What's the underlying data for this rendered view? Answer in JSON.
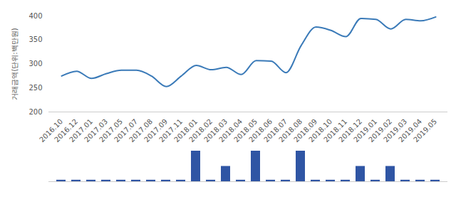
{
  "chart_data": [
    {
      "type": "line",
      "y_label": "거래금액(단위:백만원)",
      "categories": [
        "2016.10",
        "2016.12",
        "2017.01",
        "2017.03",
        "2017.05",
        "2017.07",
        "2017.08",
        "2017.09",
        "2017.11",
        "2018.01",
        "2018.02",
        "2018.03",
        "2018.04",
        "2018.05",
        "2018.06",
        "2018.07",
        "2018.08",
        "2018.09",
        "2018.10",
        "2018.11",
        "2018.12",
        "2019.01",
        "2019.02",
        "2019.03",
        "2019.04",
        "2019.05"
      ],
      "values": [
        275,
        285,
        270,
        280,
        287,
        287,
        275,
        253,
        275,
        297,
        288,
        293,
        278,
        307,
        306,
        282,
        338,
        377,
        370,
        357,
        395,
        393,
        373,
        393,
        390,
        398
      ],
      "color": "#3a7ab8",
      "ylim": [
        200,
        400
      ],
      "yticks": [
        200,
        250,
        300,
        350,
        400
      ],
      "grid": false
    },
    {
      "type": "bar",
      "categories": [
        "2016.10",
        "2016.12",
        "2017.01",
        "2017.03",
        "2017.05",
        "2017.07",
        "2017.08",
        "2017.09",
        "2017.11",
        "2018.01",
        "2018.02",
        "2018.03",
        "2018.04",
        "2018.05",
        "2018.06",
        "2018.07",
        "2018.08",
        "2018.09",
        "2018.10",
        "2018.11",
        "2018.12",
        "2019.01",
        "2019.02",
        "2019.03",
        "2019.04",
        "2019.05"
      ],
      "values": [
        0.1,
        0.1,
        0.1,
        0.1,
        0.1,
        0.1,
        0.1,
        0.1,
        0.1,
        2,
        0.1,
        1,
        0.1,
        2,
        0.1,
        0.1,
        2,
        0.1,
        0.1,
        0.1,
        1,
        0.1,
        1,
        0.1,
        0.1,
        0.1
      ],
      "color": "#2f55a4",
      "ylim": [
        0,
        2
      ],
      "tick_labels": false
    }
  ]
}
